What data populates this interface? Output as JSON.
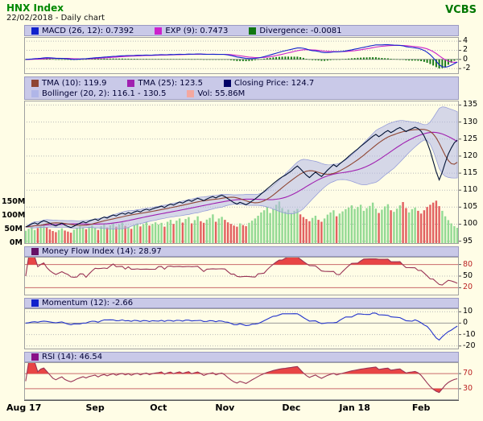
{
  "header": {
    "symbol": "HNX Index",
    "subtitle": "22/02/2018 - Daily chart",
    "brand": "VCBS"
  },
  "panels": {
    "macd": {
      "legend": [
        {
          "label": "MACD (26, 12): 0.7392",
          "color": "#1122cc"
        },
        {
          "label": "EXP (9): 0.7473",
          "color": "#cc22cc"
        },
        {
          "label": "Divergence: -0.0081",
          "color": "#117711"
        }
      ],
      "yticks": [
        {
          "v": 4,
          "label": "4"
        },
        {
          "v": 2,
          "label": "2"
        },
        {
          "v": 0,
          "label": "0",
          "zero": true
        },
        {
          "v": -2,
          "label": "-2"
        }
      ]
    },
    "price": {
      "legend_row1": [
        {
          "label": "TMA (10): 119.9",
          "color": "#8f4633"
        },
        {
          "label": "TMA (25): 123.5",
          "color": "#a020b0"
        },
        {
          "label": "Closing Price: 124.7",
          "color": "#000066"
        }
      ],
      "legend_row2": [
        {
          "label": "Bollinger (20, 2): 116.1 - 130.5",
          "color": "#b0b6e8"
        },
        {
          "label": "Vol: 55.86M",
          "color": "#f4a8a0"
        }
      ],
      "yticks": [
        {
          "v": 135,
          "label": "135"
        },
        {
          "v": 130,
          "label": "130"
        },
        {
          "v": 125,
          "label": "125"
        },
        {
          "v": 120,
          "label": "120"
        },
        {
          "v": 115,
          "label": "115"
        },
        {
          "v": 110,
          "label": "110"
        },
        {
          "v": 105,
          "label": "105"
        },
        {
          "v": 100,
          "label": "100"
        },
        {
          "v": 95,
          "label": "95"
        }
      ],
      "volume_ticks": [
        {
          "v": 150,
          "label": "150M"
        },
        {
          "v": 100,
          "label": "100M"
        },
        {
          "v": 50,
          "label": "50M"
        },
        {
          "v": 0,
          "label": "0M"
        }
      ]
    },
    "mfi": {
      "legend": [
        {
          "label": "Money Flow Index (14): 28.97",
          "color": "#661166"
        }
      ],
      "yticks": [
        {
          "v": 80,
          "label": "80",
          "accent": true
        },
        {
          "v": 50,
          "label": "50"
        },
        {
          "v": 20,
          "label": "20",
          "accent": true
        }
      ],
      "zones": {
        "hi": 80,
        "lo": 20
      }
    },
    "momentum": {
      "legend": [
        {
          "label": "Momentum (12): -2.66",
          "color": "#1122cc"
        }
      ],
      "yticks": [
        {
          "v": 10,
          "label": "10"
        },
        {
          "v": 0,
          "label": "0",
          "zero": true
        },
        {
          "v": -10,
          "label": "-10"
        },
        {
          "v": -20,
          "label": "-20"
        }
      ]
    },
    "rsi": {
      "legend": [
        {
          "label": "RSI (14): 46.54",
          "color": "#881188"
        }
      ],
      "yticks": [
        {
          "v": 70,
          "label": "70",
          "accent": true
        },
        {
          "v": 30,
          "label": "30",
          "accent": true
        }
      ],
      "zones": {
        "hi": 70,
        "lo": 30
      }
    }
  },
  "xaxis": {
    "labels": [
      {
        "text": "Aug 17",
        "idx": 0
      },
      {
        "text": "Sep",
        "idx": 23
      },
      {
        "text": "Oct",
        "idx": 44
      },
      {
        "text": "Nov",
        "idx": 66
      },
      {
        "text": "Dec",
        "idx": 88
      },
      {
        "text": "Jan 18",
        "idx": 109
      },
      {
        "text": "Feb",
        "idx": 131
      }
    ]
  },
  "chart_data": {
    "type": "line",
    "title": "HNX Index - Daily chart",
    "asof": "22/02/2018",
    "x_month_labels": [
      "Aug 17",
      "Sep",
      "Oct",
      "Nov",
      "Dec",
      "Jan 18",
      "Feb"
    ],
    "price_axis": {
      "min": 95,
      "max": 135,
      "step": 5
    },
    "volume_axis_m": [
      150,
      100,
      50,
      0
    ],
    "series": [
      {
        "name": "Closing Price",
        "last": 124.7,
        "values": [
          99.2,
          99.6,
          100.1,
          100.4,
          100.0,
          100.6,
          101.0,
          100.7,
          100.3,
          99.8,
          99.5,
          99.9,
          100.3,
          99.7,
          99.3,
          99.0,
          99.4,
          99.9,
          100.3,
          100.7,
          100.4,
          100.9,
          101.2,
          101.5,
          101.1,
          101.7,
          102.1,
          101.8,
          102.3,
          102.7,
          102.4,
          102.9,
          103.2,
          102.9,
          103.4,
          103.1,
          103.6,
          103.9,
          103.6,
          104.1,
          104.4,
          104.1,
          104.5,
          104.8,
          105.0,
          105.3,
          104.9,
          105.5,
          105.9,
          105.6,
          106.1,
          106.5,
          106.2,
          106.7,
          107.1,
          106.7,
          107.2,
          107.6,
          107.3,
          106.9,
          107.4,
          107.8,
          108.1,
          107.7,
          108.2,
          108.5,
          108.1,
          107.5,
          106.9,
          106.3,
          105.9,
          106.4,
          106.1,
          105.7,
          106.2,
          106.8,
          107.4,
          108.1,
          108.9,
          109.6,
          110.4,
          111.1,
          111.9,
          112.6,
          113.3,
          113.9,
          114.4,
          115.0,
          115.6,
          116.4,
          117.1,
          116.3,
          115.3,
          114.4,
          113.7,
          114.5,
          115.3,
          114.6,
          114.0,
          114.9,
          115.9,
          116.7,
          117.5,
          116.9,
          117.7,
          118.4,
          119.1,
          119.9,
          120.7,
          121.4,
          122.1,
          122.9,
          123.6,
          124.3,
          125.1,
          125.8,
          126.4,
          125.7,
          126.3,
          127.0,
          127.5,
          126.9,
          127.4,
          128.0,
          128.4,
          127.8,
          127.2,
          127.7,
          128.1,
          128.5,
          128.1,
          127.3,
          125.9,
          124.0,
          121.5,
          118.5,
          115.4,
          113.0,
          115.3,
          118.1,
          120.6,
          122.4,
          123.9,
          124.7
        ]
      },
      {
        "name": "Volume_M",
        "last": 55.86,
        "values": [
          45,
          52,
          60,
          48,
          55,
          62,
          70,
          58,
          50,
          44,
          40,
          47,
          54,
          46,
          42,
          38,
          49,
          56,
          63,
          58,
          51,
          60,
          66,
          55,
          48,
          62,
          70,
          57,
          65,
          74,
          60,
          68,
          75,
          63,
          58,
          52,
          66,
          72,
          61,
          69,
          77,
          64,
          70,
          76,
          68,
          74,
          60,
          78,
          85,
          70,
          82,
          90,
          75,
          88,
          95,
          72,
          84,
          98,
          80,
          74,
          86,
          92,
          105,
          78,
          90,
          96,
          85,
          76,
          70,
          64,
          60,
          72,
          66,
          62,
          74,
          82,
          90,
          100,
          112,
          120,
          132,
          110,
          125,
          140,
          152,
          128,
          115,
          122,
          110,
          118,
          125,
          105,
          95,
          88,
          80,
          92,
          100,
          85,
          78,
          90,
          104,
          112,
          120,
          98,
          108,
          116,
          124,
          130,
          138,
          125,
          132,
          140,
          118,
          128,
          136,
          148,
          126,
          110,
          122,
          134,
          142,
          120,
          114,
          126,
          138,
          150,
          128,
          112,
          124,
          130,
          118,
          108,
          120,
          132,
          140,
          148,
          155,
          135,
          118,
          98,
          84,
          72,
          62,
          55.86
        ]
      }
    ],
    "indicators": [
      {
        "name": "TMA",
        "params": "10",
        "last": "119.9"
      },
      {
        "name": "TMA",
        "params": "25",
        "last": "123.5"
      },
      {
        "name": "Bollinger",
        "params": "20, 2",
        "last": "116.1 - 130.5"
      },
      {
        "name": "MACD",
        "params": "26, 12",
        "last": "0.7392"
      },
      {
        "name": "EXP",
        "params": "9",
        "last": "0.7473"
      },
      {
        "name": "Divergence",
        "params": "",
        "last": "-0.0081"
      },
      {
        "name": "Money Flow Index",
        "params": "14",
        "last": "28.97"
      },
      {
        "name": "Momentum",
        "params": "12",
        "last": "-2.66"
      },
      {
        "name": "RSI",
        "params": "14",
        "last": "46.54"
      }
    ],
    "panel_tick_ranges": {
      "macd": [
        -2,
        4
      ],
      "price": [
        95,
        135
      ],
      "mfi": [
        20,
        80
      ],
      "momentum": [
        -20,
        10
      ],
      "rsi": [
        30,
        70
      ]
    }
  },
  "colors": {
    "background": "#fffde6",
    "panel_header": "#c9c9e8",
    "grid": "#b9b9b9",
    "threshold_line": "#c96a6a",
    "overbought_fill": "#e84545",
    "up_volume": "#93da93",
    "down_volume": "#e26060",
    "band_fill": "#b2b8e8",
    "closing_line": "#001133",
    "tma10_line": "#8f4633",
    "tma25_line": "#a020b0",
    "macd_line": "#1122cc",
    "exp_line": "#cc22cc",
    "divergence_bar": "#1a7a1a",
    "mfi_line": "#993355",
    "momentum_line": "#2233cc",
    "rsi_line": "#993355",
    "title_green": "#008800"
  }
}
